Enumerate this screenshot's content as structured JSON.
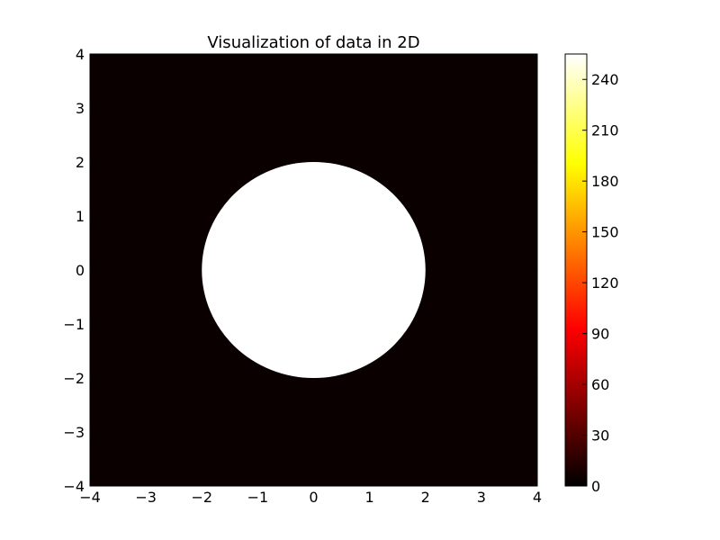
{
  "chart_data": {
    "type": "heatmap",
    "title": "Visualization of data in 2D",
    "xlabel": "",
    "ylabel": "",
    "xlim": [
      -4,
      4
    ],
    "ylim": [
      -4,
      4
    ],
    "xticks": [
      "−4",
      "−3",
      "−2",
      "−1",
      "0",
      "1",
      "2",
      "3",
      "4"
    ],
    "yticks": [
      "−4",
      "−3",
      "−2",
      "−1",
      "0",
      "1",
      "2",
      "3",
      "4"
    ],
    "x_tick_values": [
      -4,
      -3,
      -2,
      -1,
      0,
      1,
      2,
      3,
      4
    ],
    "y_tick_values": [
      -4,
      -3,
      -2,
      -1,
      0,
      1,
      2,
      3,
      4
    ],
    "grid": false,
    "colormap": "hot",
    "colorbar": {
      "range": [
        0,
        255
      ],
      "tick_values": [
        0,
        30,
        60,
        90,
        120,
        150,
        180,
        210,
        240
      ],
      "tick_labels": [
        "0",
        "30",
        "60",
        "90",
        "120",
        "150",
        "180",
        "210",
        "240"
      ],
      "placement": "right"
    },
    "regions": [
      {
        "shape": "background",
        "value": 3,
        "color": "#0a0000"
      },
      {
        "shape": "disk",
        "center": [
          0,
          0
        ],
        "radius": 2,
        "value": 255,
        "color": "#ffffff"
      }
    ]
  }
}
